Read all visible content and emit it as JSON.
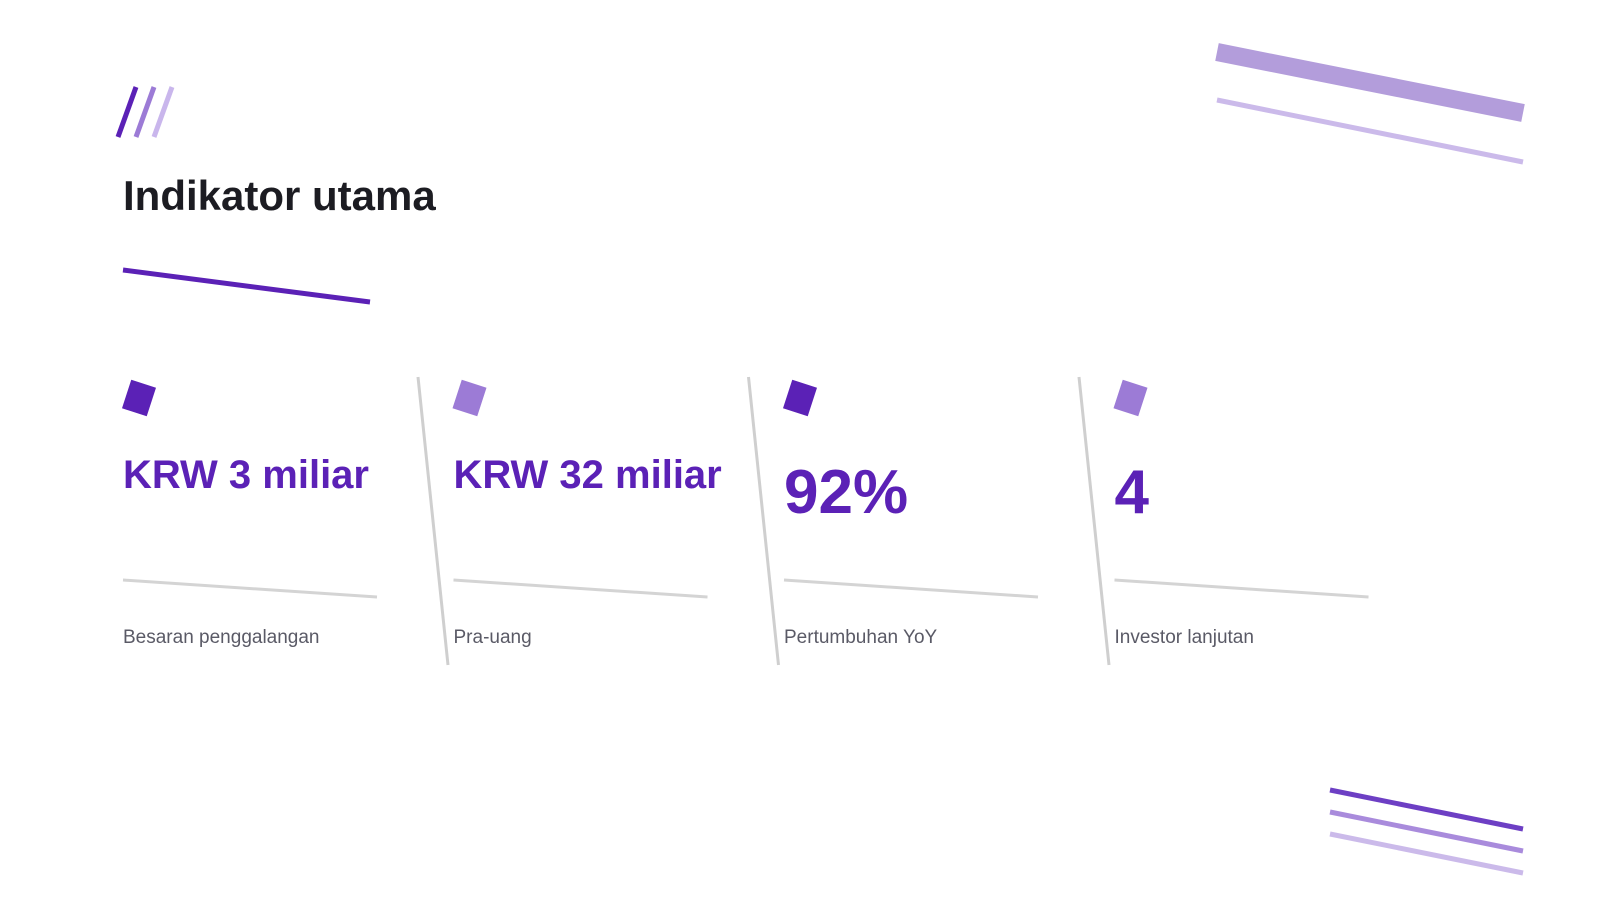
{
  "title": "Indikator utama",
  "metrics": [
    {
      "value": "KRW 3 miliar",
      "label": "Besaran penggalangan"
    },
    {
      "value": "KRW 32 miliar",
      "label": "Pra-uang"
    },
    {
      "value": "92%",
      "label": "Pertumbuhan YoY"
    },
    {
      "value": "4",
      "label": "Investor lanjutan"
    }
  ]
}
